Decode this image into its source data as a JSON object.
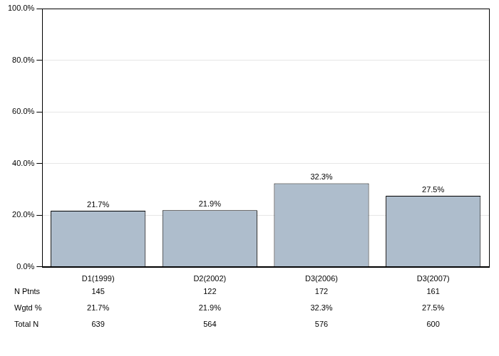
{
  "chart_data": {
    "type": "bar",
    "categories": [
      "D1(1999)",
      "D2(2002)",
      "D3(2006)",
      "D3(2007)"
    ],
    "values": [
      21.7,
      21.9,
      32.3,
      27.5
    ],
    "value_labels": [
      "21.7%",
      "21.9%",
      "32.3%",
      "27.5%"
    ],
    "color": "#aebdcc",
    "ylim": [
      0,
      100
    ],
    "yticks": [
      {
        "value": 0,
        "label": "0.0%"
      },
      {
        "value": 20,
        "label": "20.0%"
      },
      {
        "value": 40,
        "label": "40.0%"
      },
      {
        "value": 60,
        "label": "60.0%"
      },
      {
        "value": 80,
        "label": "80.0%"
      },
      {
        "value": 100,
        "label": "100.0%"
      }
    ],
    "grid": true,
    "data_labels": true
  },
  "table": {
    "rows": [
      [
        "N Ptnts",
        "145",
        "122",
        "172",
        "161"
      ],
      [
        "Wgtd %",
        "21.7%",
        "21.9%",
        "32.3%",
        "27.5%"
      ],
      [
        "Total N",
        "639",
        "564",
        "576",
        "600"
      ]
    ]
  }
}
